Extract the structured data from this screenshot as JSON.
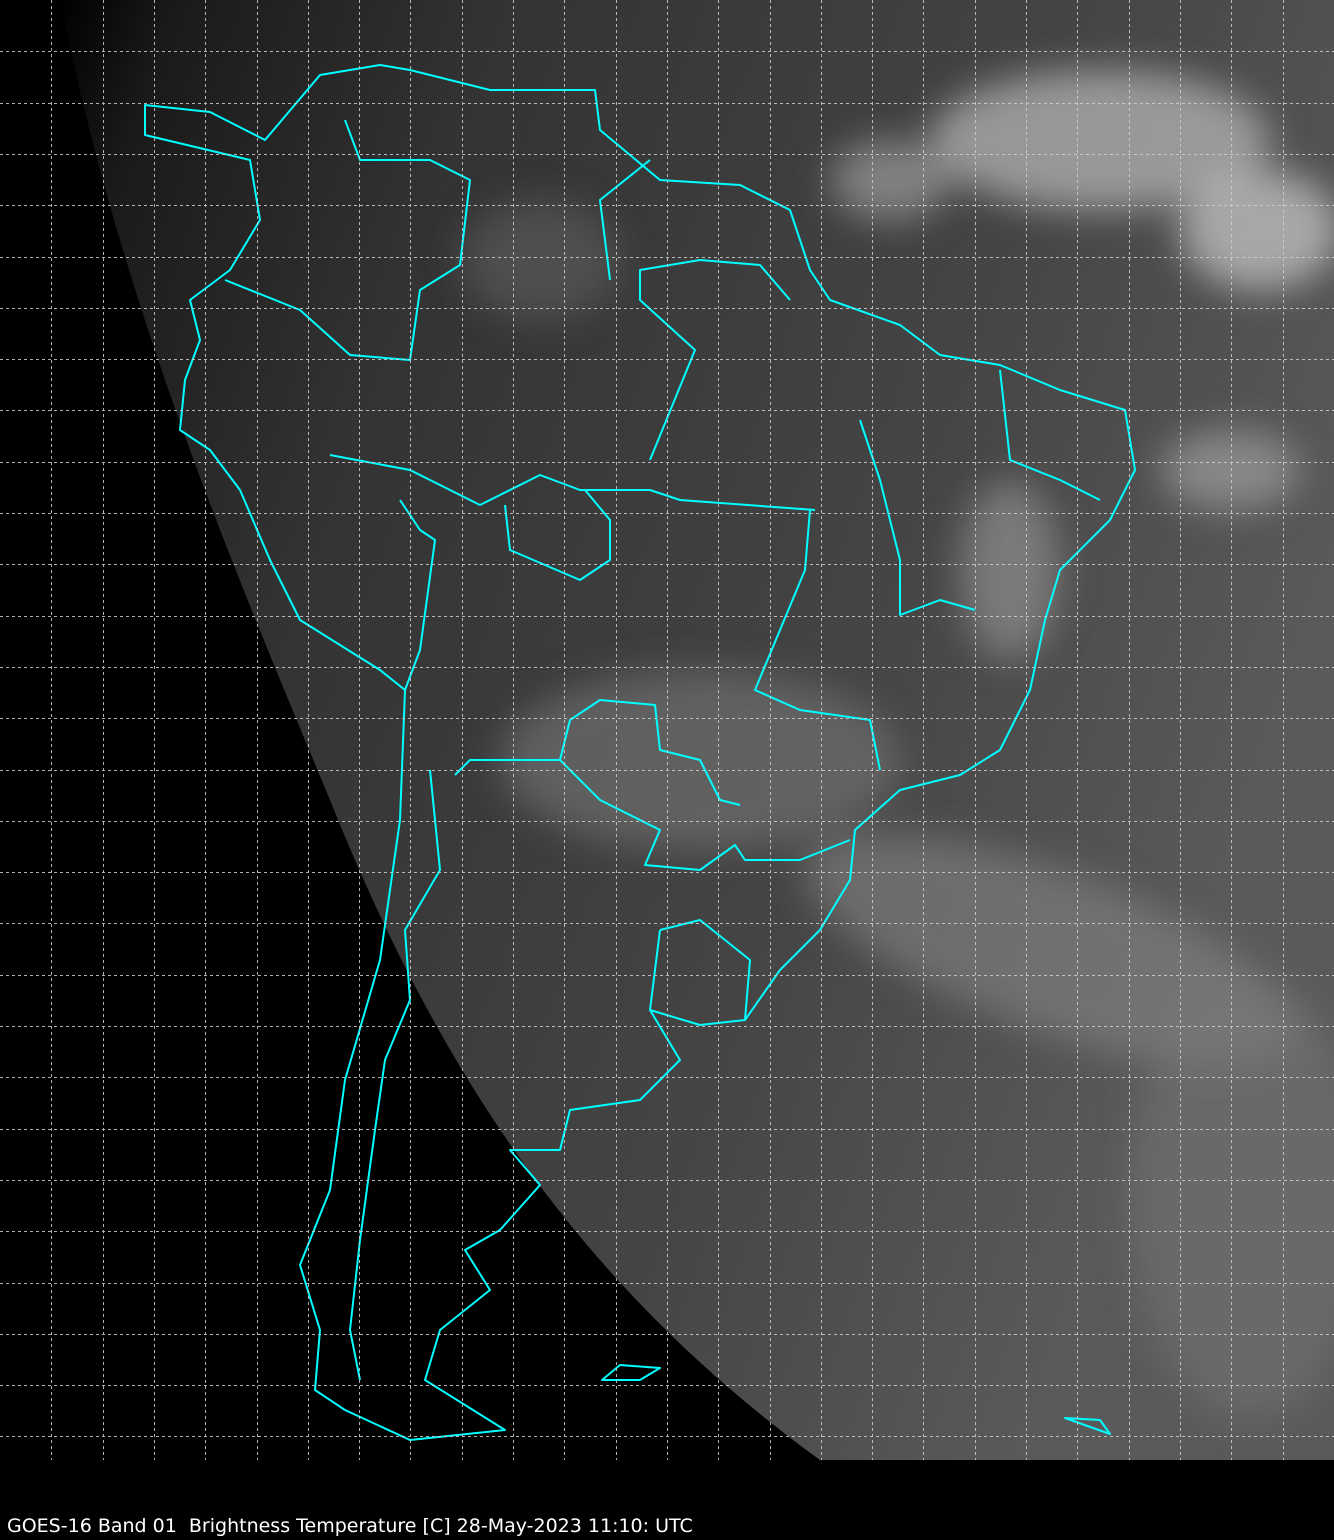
{
  "caption": "GOES-16 Band 01  Brightness Temperature [C] 28-May-2023 11:10: UTC",
  "colors": {
    "background": "#000000",
    "borders": "#00ffff",
    "grid": "#d0d0d0",
    "caption": "#ffffff"
  },
  "layers": [
    "grayscale-satellite-imagery",
    "country-and-state-borders",
    "lat-lon-grid"
  ]
}
